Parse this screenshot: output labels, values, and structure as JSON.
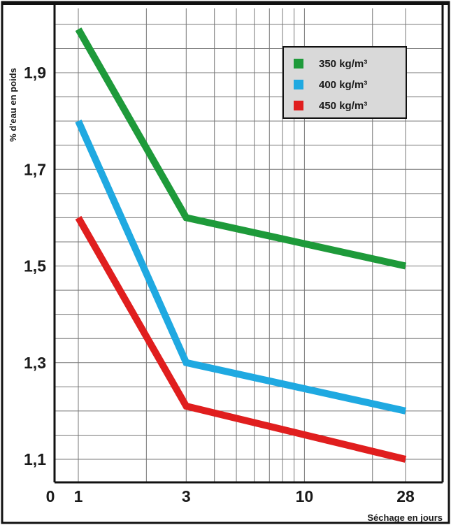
{
  "chart_data": {
    "type": "line",
    "title": "",
    "xlabel": "Séchage en jours",
    "ylabel": "% d'eau en poids",
    "x_scale": "log",
    "xlim": [
      1,
      28
    ],
    "ylim": [
      1.05,
      2.0
    ],
    "x_ticks": [
      "0",
      "1",
      "3",
      "10",
      "28"
    ],
    "y_ticks": [
      "1,1",
      "1,3",
      "1,5",
      "1,7",
      "1,9"
    ],
    "grid": true,
    "legend_position": "top-right",
    "x": [
      1,
      3,
      28
    ],
    "series": [
      {
        "name": "350 kg/m³",
        "color": "#1e9a3a",
        "values": [
          1.99,
          1.6,
          1.5
        ]
      },
      {
        "name": "400 kg/m³",
        "color": "#1fa9e1",
        "values": [
          1.8,
          1.3,
          1.2
        ]
      },
      {
        "name": "450 kg/m³",
        "color": "#e01e1e",
        "values": [
          1.6,
          1.21,
          1.1
        ]
      }
    ]
  },
  "colors": {
    "frame": "#111111",
    "grid": "#777777",
    "legend_bg": "#d9d9d9"
  }
}
